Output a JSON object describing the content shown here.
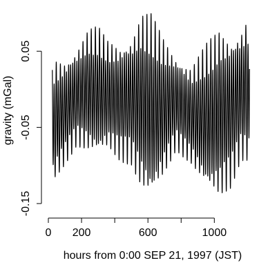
{
  "chart_data": {
    "type": "line",
    "title": "",
    "xlabel": "hours from 0:00 SEP 21, 1997 (JST)",
    "ylabel": "gravity (mGal)",
    "xlim": [
      0,
      1240
    ],
    "ylim": [
      -0.16,
      0.11
    ],
    "x_ticks": [
      0,
      200,
      600,
      1000
    ],
    "y_ticks": [
      -0.15,
      -0.05,
      0.05
    ],
    "x_tick_labels": [
      "0",
      "200",
      "600",
      "1000"
    ],
    "y_tick_labels": [
      "-0.15",
      "-0.05",
      "0.05"
    ],
    "x_minor_ticks": [
      400,
      800
    ],
    "grid": false,
    "line_color": "#000000",
    "series": [
      {
        "x_start": 24,
        "x_end": 1212,
        "semidiurnal_period_hours": 12.42,
        "diurnal_period_hours": 25.82,
        "upper_envelope": [
          [
            24,
            0.04
          ],
          [
            100,
            0.04
          ],
          [
            170,
            0.055
          ],
          [
            240,
            0.08
          ],
          [
            300,
            0.083
          ],
          [
            360,
            0.065
          ],
          [
            430,
            0.06
          ],
          [
            500,
            0.07
          ],
          [
            560,
            0.1
          ],
          [
            620,
            0.1
          ],
          [
            690,
            0.07
          ],
          [
            770,
            0.045
          ],
          [
            860,
            0.03
          ],
          [
            950,
            0.06
          ],
          [
            1030,
            0.08
          ],
          [
            1100,
            0.07
          ],
          [
            1160,
            0.08
          ],
          [
            1212,
            0.1
          ]
        ],
        "lower_envelope": [
          [
            24,
            -0.128
          ],
          [
            100,
            -0.1
          ],
          [
            170,
            -0.075
          ],
          [
            240,
            -0.085
          ],
          [
            300,
            -0.09
          ],
          [
            360,
            -0.08
          ],
          [
            430,
            -0.095
          ],
          [
            500,
            -0.1
          ],
          [
            560,
            -0.135
          ],
          [
            620,
            -0.15
          ],
          [
            690,
            -0.12
          ],
          [
            770,
            -0.08
          ],
          [
            860,
            -0.1
          ],
          [
            950,
            -0.135
          ],
          [
            1030,
            -0.145
          ],
          [
            1100,
            -0.13
          ],
          [
            1160,
            -0.095
          ],
          [
            1212,
            -0.1
          ]
        ]
      }
    ]
  }
}
